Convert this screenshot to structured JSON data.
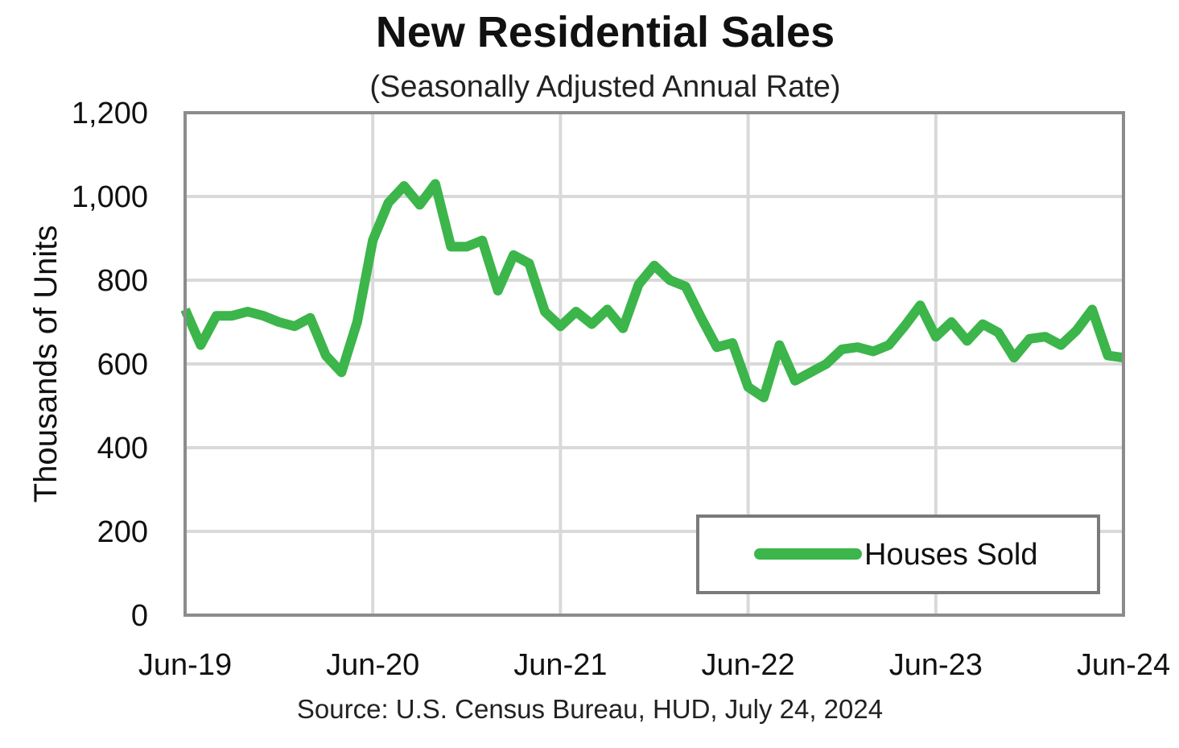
{
  "chart_data": {
    "type": "line",
    "title": "New Residential Sales",
    "subtitle": "(Seasonally Adjusted Annual Rate)",
    "xlabel": "",
    "ylabel": "Thousands of Units",
    "ylim": [
      0,
      1200
    ],
    "yticks": [
      "0",
      "200",
      "400",
      "600",
      "800",
      "1,000",
      "1,200"
    ],
    "ytick_values": [
      0,
      200,
      400,
      600,
      800,
      1000,
      1200
    ],
    "xticks": [
      "Jun-19",
      "Jun-20",
      "Jun-21",
      "Jun-22",
      "Jun-23",
      "Jun-24"
    ],
    "grid": true,
    "legend": "bottom-right",
    "source": "Source:  U.S. Census Bureau, HUD, July 24, 2024",
    "series": [
      {
        "name": "Houses Sold",
        "color": "#3cb54a",
        "x": [
          "2019-06",
          "2019-07",
          "2019-08",
          "2019-09",
          "2019-10",
          "2019-11",
          "2019-12",
          "2020-01",
          "2020-02",
          "2020-03",
          "2020-04",
          "2020-05",
          "2020-06",
          "2020-07",
          "2020-08",
          "2020-09",
          "2020-10",
          "2020-11",
          "2020-12",
          "2021-01",
          "2021-02",
          "2021-03",
          "2021-04",
          "2021-05",
          "2021-06",
          "2021-07",
          "2021-08",
          "2021-09",
          "2021-10",
          "2021-11",
          "2021-12",
          "2022-01",
          "2022-02",
          "2022-03",
          "2022-04",
          "2022-05",
          "2022-06",
          "2022-07",
          "2022-08",
          "2022-09",
          "2022-10",
          "2022-11",
          "2022-12",
          "2023-01",
          "2023-02",
          "2023-03",
          "2023-04",
          "2023-05",
          "2023-06",
          "2023-07",
          "2023-08",
          "2023-09",
          "2023-10",
          "2023-11",
          "2023-12",
          "2024-01",
          "2024-02",
          "2024-03",
          "2024-04",
          "2024-05",
          "2024-06"
        ],
        "values": [
          730,
          645,
          715,
          715,
          725,
          715,
          700,
          690,
          710,
          620,
          580,
          700,
          895,
          985,
          1025,
          980,
          1030,
          880,
          880,
          895,
          775,
          860,
          840,
          725,
          690,
          725,
          695,
          730,
          685,
          790,
          835,
          800,
          785,
          710,
          640,
          650,
          545,
          520,
          645,
          560,
          580,
          600,
          635,
          640,
          630,
          645,
          690,
          740,
          665,
          700,
          655,
          695,
          675,
          615,
          660,
          665,
          645,
          680,
          730,
          620,
          615
        ]
      }
    ]
  }
}
